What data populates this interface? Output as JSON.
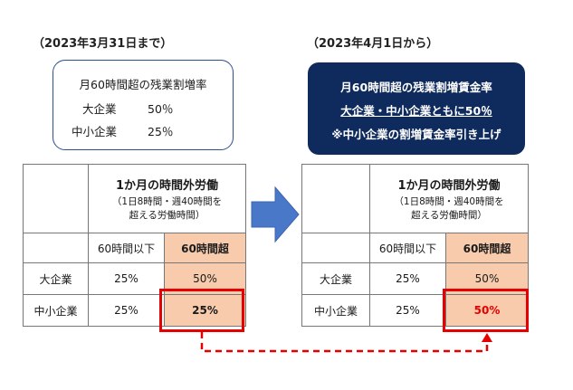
{
  "left": {
    "date_label": "（2023年3月31日まで）",
    "box": {
      "title": "月60時間超の残業割増率",
      "rows": [
        {
          "label": "大企業",
          "value": "50％"
        },
        {
          "label": "中小企業",
          "value": "25％"
        }
      ]
    },
    "table": {
      "header_main": "1か月の時間外労働",
      "header_sub_1": "（1日8時間・週40時間を",
      "header_sub_2": "超える労働時間）",
      "col1": "60時間以下",
      "col2": "60時間超",
      "rows": [
        {
          "label": "大企業",
          "v1": "25%",
          "v2": "50%"
        },
        {
          "label": "中小企業",
          "v1": "25%",
          "v2": "25%"
        }
      ]
    }
  },
  "right": {
    "date_label": "（2023年4月1日から）",
    "box": {
      "line1": "月60時間超の残業割増賃金率",
      "line2": "大企業・中小企業ともに50％",
      "line3": "※中小企業の割増賃金率引き上げ"
    },
    "table": {
      "header_main": "1か月の時間外労働",
      "header_sub_1": "（1日8時間・週40時間を",
      "header_sub_2": "超える労働時間）",
      "col1": "60時間以下",
      "col2": "60時間超",
      "rows": [
        {
          "label": "大企業",
          "v1": "25%",
          "v2": "50%"
        },
        {
          "label": "中小企業",
          "v1": "25%",
          "v2": "50%"
        }
      ]
    }
  },
  "colors": {
    "navy_box": "#0f2a5c",
    "peach": "#f8cbad",
    "highlight_red": "#e60000",
    "arrow_blue": "#4a78c8"
  }
}
